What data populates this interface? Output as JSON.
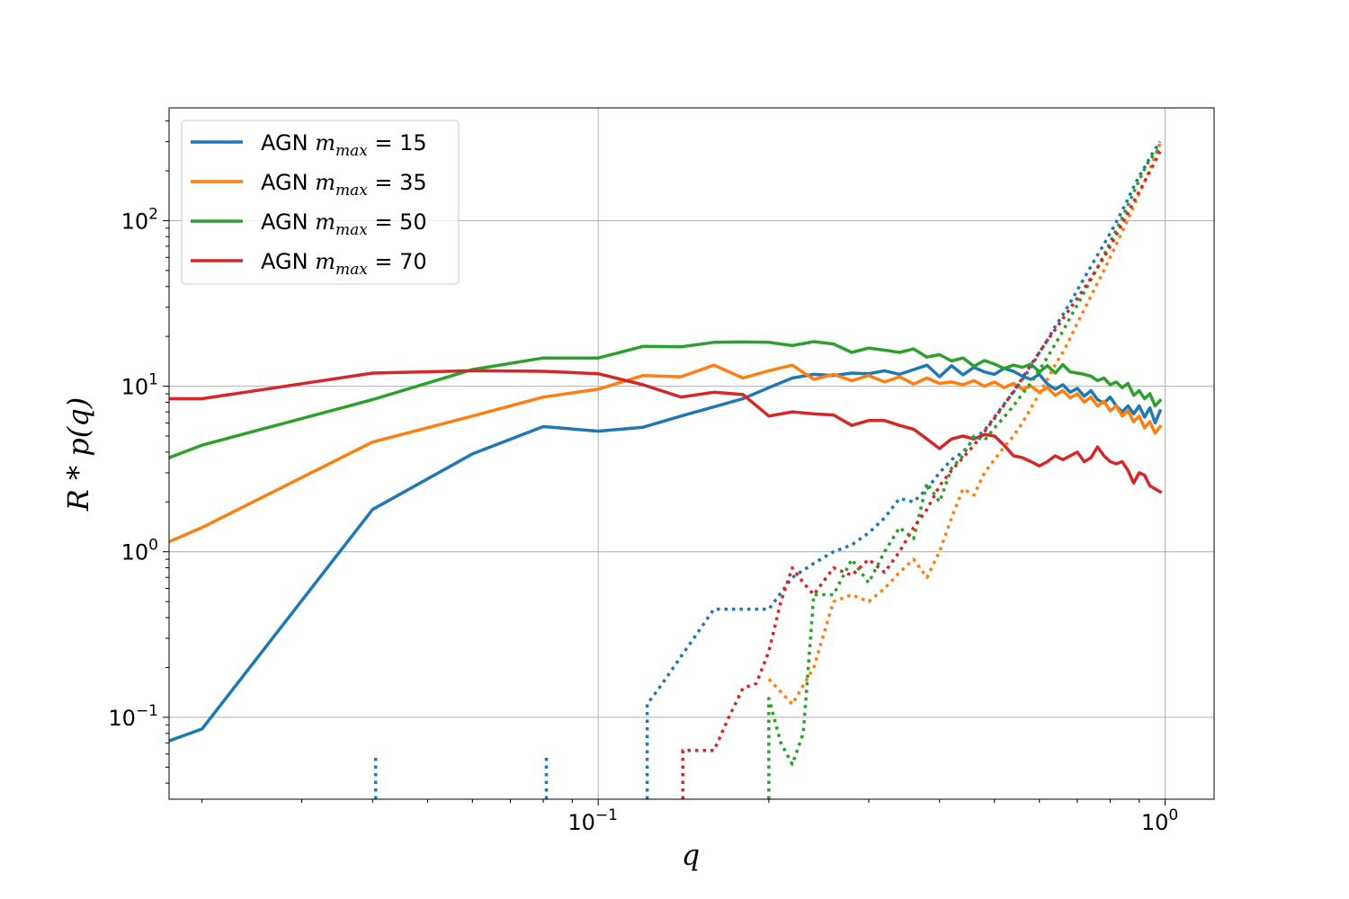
{
  "chart_data": {
    "type": "line",
    "xlabel": "q",
    "ylabel": "R * p(q)",
    "xscale": "log",
    "yscale": "log",
    "xlim": [
      0.0175,
      1.22
    ],
    "ylim": [
      0.032,
      480
    ],
    "grid": true,
    "legend_position": "top-left",
    "x_ticks": [
      {
        "value": 0.1,
        "label": "10",
        "exp": "−1"
      },
      {
        "value": 1,
        "label": "10",
        "exp": "0"
      }
    ],
    "y_ticks": [
      {
        "value": 0.1,
        "label": "10",
        "exp": "−1"
      },
      {
        "value": 1,
        "label": "10",
        "exp": "0"
      },
      {
        "value": 10,
        "label": "10",
        "exp": "1"
      },
      {
        "value": 100,
        "label": "10",
        "exp": "2"
      }
    ],
    "series": [
      {
        "name": "AGN m_max = 15",
        "legend_prefix": "AGN ",
        "legend_var": "m",
        "legend_sub": "max",
        "legend_val": " = 15",
        "color": "#1f77b4",
        "style": "solid",
        "x": [
          0.0175,
          0.02,
          0.04,
          0.06,
          0.08,
          0.1,
          0.12,
          0.14,
          0.16,
          0.18,
          0.2,
          0.22,
          0.24,
          0.26,
          0.28,
          0.3,
          0.32,
          0.34,
          0.36,
          0.38,
          0.4,
          0.42,
          0.44,
          0.46,
          0.48,
          0.5,
          0.52,
          0.54,
          0.56,
          0.58,
          0.6,
          0.62,
          0.64,
          0.66,
          0.68,
          0.7,
          0.72,
          0.74,
          0.76,
          0.78,
          0.8,
          0.82,
          0.84,
          0.86,
          0.88,
          0.9,
          0.92,
          0.94,
          0.96,
          0.98
        ],
        "y": [
          0.072,
          0.085,
          1.8,
          3.9,
          5.7,
          5.35,
          5.65,
          6.6,
          7.5,
          8.4,
          9.8,
          11.2,
          11.8,
          11.6,
          12.0,
          11.9,
          12.4,
          11.8,
          12.6,
          13.4,
          11.4,
          13.3,
          11.7,
          13.0,
          12.2,
          11.8,
          12.8,
          12.3,
          11.5,
          11.0,
          11.8,
          10.3,
          9.6,
          10.2,
          9.2,
          9.7,
          8.7,
          9.4,
          8.3,
          7.9,
          8.6,
          7.6,
          7.0,
          7.6,
          6.8,
          7.6,
          6.5,
          7.4,
          6.0,
          7.1
        ]
      },
      {
        "name": "AGN m_max = 35",
        "legend_prefix": "AGN ",
        "legend_var": "m",
        "legend_sub": "max",
        "legend_val": " = 35",
        "color": "#ff7f0e",
        "style": "solid",
        "x": [
          0.0175,
          0.02,
          0.04,
          0.06,
          0.08,
          0.1,
          0.12,
          0.14,
          0.16,
          0.18,
          0.2,
          0.22,
          0.24,
          0.26,
          0.28,
          0.3,
          0.32,
          0.34,
          0.36,
          0.38,
          0.4,
          0.42,
          0.44,
          0.46,
          0.48,
          0.5,
          0.52,
          0.54,
          0.56,
          0.58,
          0.6,
          0.62,
          0.64,
          0.66,
          0.68,
          0.7,
          0.72,
          0.74,
          0.76,
          0.78,
          0.8,
          0.82,
          0.84,
          0.86,
          0.88,
          0.9,
          0.92,
          0.94,
          0.96,
          0.98
        ],
        "y": [
          1.15,
          1.4,
          4.6,
          6.6,
          8.6,
          9.6,
          11.6,
          11.4,
          13.4,
          11.2,
          12.4,
          13.4,
          11.0,
          11.8,
          10.8,
          11.6,
          10.6,
          11.4,
          10.3,
          11.2,
          10.4,
          10.6,
          10.2,
          10.8,
          10.0,
          10.6,
          9.8,
          10.4,
          9.6,
          10.0,
          9.2,
          9.8,
          8.8,
          9.4,
          8.5,
          9.0,
          8.0,
          8.6,
          7.6,
          8.1,
          7.1,
          7.6,
          6.6,
          7.1,
          6.1,
          6.6,
          5.6,
          6.1,
          5.2,
          5.7
        ]
      },
      {
        "name": "AGN m_max = 50",
        "legend_prefix": "AGN ",
        "legend_var": "m",
        "legend_sub": "max",
        "legend_val": " = 50",
        "color": "#2ca02c",
        "style": "solid",
        "x": [
          0.0175,
          0.02,
          0.04,
          0.06,
          0.08,
          0.1,
          0.12,
          0.14,
          0.16,
          0.18,
          0.2,
          0.22,
          0.24,
          0.26,
          0.28,
          0.3,
          0.32,
          0.34,
          0.36,
          0.38,
          0.4,
          0.42,
          0.44,
          0.46,
          0.48,
          0.5,
          0.52,
          0.54,
          0.56,
          0.58,
          0.6,
          0.62,
          0.64,
          0.66,
          0.68,
          0.7,
          0.72,
          0.74,
          0.76,
          0.78,
          0.8,
          0.82,
          0.84,
          0.86,
          0.88,
          0.9,
          0.92,
          0.94,
          0.96,
          0.98
        ],
        "y": [
          3.7,
          4.4,
          8.3,
          12.6,
          14.8,
          14.8,
          17.4,
          17.3,
          18.4,
          18.5,
          18.4,
          17.6,
          18.6,
          18.0,
          16.0,
          17.0,
          16.5,
          16.0,
          16.8,
          15.0,
          15.5,
          14.2,
          14.8,
          13.2,
          14.3,
          13.6,
          12.8,
          13.4,
          13.0,
          13.6,
          12.2,
          13.3,
          12.0,
          13.5,
          12.2,
          12.0,
          11.8,
          11.5,
          10.8,
          11.2,
          10.2,
          10.6,
          9.8,
          10.4,
          8.8,
          9.4,
          8.4,
          9.0,
          7.6,
          8.2
        ]
      },
      {
        "name": "AGN m_max = 70",
        "legend_prefix": "AGN ",
        "legend_var": "m",
        "legend_sub": "max",
        "legend_val": " = 70",
        "color": "#d62728",
        "style": "solid",
        "x": [
          0.0175,
          0.02,
          0.04,
          0.06,
          0.08,
          0.1,
          0.12,
          0.14,
          0.16,
          0.18,
          0.2,
          0.22,
          0.24,
          0.26,
          0.28,
          0.3,
          0.32,
          0.34,
          0.36,
          0.38,
          0.4,
          0.42,
          0.44,
          0.46,
          0.48,
          0.5,
          0.52,
          0.54,
          0.56,
          0.58,
          0.6,
          0.62,
          0.64,
          0.66,
          0.68,
          0.7,
          0.72,
          0.74,
          0.76,
          0.78,
          0.8,
          0.82,
          0.84,
          0.86,
          0.88,
          0.9,
          0.92,
          0.94,
          0.96,
          0.98
        ],
        "y": [
          8.4,
          8.4,
          12.0,
          12.4,
          12.3,
          11.9,
          10.2,
          8.6,
          9.2,
          8.9,
          6.6,
          7.0,
          6.8,
          6.7,
          5.8,
          6.2,
          6.2,
          5.8,
          5.5,
          4.8,
          4.2,
          4.8,
          5.0,
          4.8,
          5.1,
          5.0,
          4.4,
          3.8,
          3.7,
          3.5,
          3.3,
          3.5,
          3.8,
          3.6,
          3.8,
          4.0,
          3.5,
          3.7,
          4.3,
          3.8,
          3.5,
          3.4,
          3.5,
          3.1,
          2.6,
          3.0,
          2.9,
          2.5,
          2.4,
          2.3
        ]
      },
      {
        "name": "",
        "color": "#1f77b4",
        "style": "dotted",
        "segments": [
          {
            "x": [
              0.0405,
              0.0405
            ],
            "y": [
              0.032,
              0.058
            ]
          },
          {
            "x": [
              0.081,
              0.081
            ],
            "y": [
              0.032,
              0.058
            ]
          },
          {
            "x": [
              0.122,
              0.122,
              0.128,
              0.16,
              0.2,
              0.22,
              0.24,
              0.26,
              0.28,
              0.3,
              0.32,
              0.34,
              0.36,
              0.38,
              0.4,
              0.42,
              0.44,
              0.46,
              0.48,
              0.5,
              0.52,
              0.54,
              0.56,
              0.58,
              0.6,
              0.62,
              0.64,
              0.66,
              0.68,
              0.7,
              0.72,
              0.74,
              0.76,
              0.78,
              0.8,
              0.82,
              0.84,
              0.86,
              0.88,
              0.9,
              0.92,
              0.94,
              0.96,
              0.98
            ],
            "y": [
              0.032,
              0.12,
              0.15,
              0.45,
              0.45,
              0.7,
              0.85,
              1.0,
              1.1,
              1.3,
              1.6,
              2.1,
              2.0,
              2.4,
              3.0,
              3.6,
              4.0,
              4.8,
              5.4,
              6.5,
              7.8,
              9.2,
              11.0,
              13.0,
              16.0,
              19.0,
              23.0,
              27.0,
              32.0,
              38.0,
              45.0,
              53.0,
              62.0,
              72.0,
              84.0,
              98.0,
              115.0,
              135.0,
              160.0,
              185.0,
              210.0,
              240.0,
              270.0,
              300.0
            ]
          }
        ]
      },
      {
        "name": "",
        "color": "#ff7f0e",
        "style": "dotted",
        "segments": [
          {
            "x": [
              0.2,
              0.22,
              0.24,
              0.26,
              0.28,
              0.3,
              0.32,
              0.34,
              0.36,
              0.38,
              0.4,
              0.42,
              0.44,
              0.46,
              0.48,
              0.5,
              0.52,
              0.54,
              0.56,
              0.58,
              0.6,
              0.62,
              0.64,
              0.66,
              0.68,
              0.7,
              0.72,
              0.74,
              0.76,
              0.78,
              0.8,
              0.82,
              0.84,
              0.86,
              0.88,
              0.9,
              0.92,
              0.94,
              0.96,
              0.98
            ],
            "y": [
              0.17,
              0.12,
              0.2,
              0.5,
              0.55,
              0.5,
              0.6,
              0.75,
              0.9,
              0.7,
              1.0,
              1.6,
              2.4,
              2.2,
              3.0,
              3.6,
              4.3,
              5.0,
              6.0,
              7.4,
              9.0,
              11.0,
              13.5,
              16.0,
              19.5,
              24.0,
              29.0,
              35.0,
              42.0,
              50.0,
              60.0,
              72.0,
              86.0,
              102.0,
              122.0,
              145.0,
              172.0,
              205.0,
              245.0,
              295.0
            ]
          }
        ]
      },
      {
        "name": "",
        "color": "#2ca02c",
        "style": "dotted",
        "segments": [
          {
            "x": [
              0.2,
              0.2,
              0.21,
              0.22,
              0.23,
              0.24,
              0.26,
              0.28,
              0.3,
              0.32,
              0.34,
              0.36,
              0.38,
              0.4,
              0.42,
              0.44,
              0.46,
              0.48,
              0.5,
              0.52,
              0.54,
              0.56,
              0.58,
              0.6,
              0.62,
              0.64,
              0.66,
              0.68,
              0.7,
              0.72,
              0.74,
              0.76,
              0.78,
              0.8,
              0.82,
              0.84,
              0.86,
              0.88,
              0.9,
              0.92,
              0.94,
              0.96,
              0.98
            ],
            "y": [
              0.032,
              0.13,
              0.07,
              0.052,
              0.08,
              0.55,
              0.55,
              0.9,
              0.65,
              1.0,
              1.4,
              1.2,
              2.6,
              2.0,
              3.2,
              3.8,
              5.0,
              4.7,
              5.6,
              6.5,
              7.6,
              9.0,
              10.5,
              12.5,
              15.0,
              18.0,
              21.5,
              26.0,
              31.0,
              37.0,
              44.0,
              52.0,
              62.0,
              74.0,
              88.0,
              104.0,
              124.0,
              148.0,
              175.0,
              205.0,
              235.0,
              255.0,
              275.0
            ]
          }
        ]
      },
      {
        "name": "",
        "color": "#d62728",
        "style": "dotted",
        "segments": [
          {
            "x": [
              0.141,
              0.141,
              0.15,
              0.16,
              0.17,
              0.18,
              0.19,
              0.2,
              0.21,
              0.22,
              0.23,
              0.24,
              0.26,
              0.28,
              0.3,
              0.32,
              0.34,
              0.36,
              0.38,
              0.4,
              0.42,
              0.44,
              0.46,
              0.48,
              0.5,
              0.52,
              0.54,
              0.56,
              0.58,
              0.6,
              0.62,
              0.64,
              0.66,
              0.68,
              0.7,
              0.72,
              0.74,
              0.76,
              0.78,
              0.8,
              0.82,
              0.84,
              0.86,
              0.88,
              0.9,
              0.92,
              0.94,
              0.96,
              0.98
            ],
            "y": [
              0.032,
              0.063,
              0.063,
              0.063,
              0.1,
              0.15,
              0.16,
              0.25,
              0.5,
              0.8,
              0.65,
              0.55,
              0.8,
              0.72,
              0.9,
              0.75,
              1.0,
              1.4,
              1.8,
              2.5,
              3.1,
              3.7,
              4.4,
              5.3,
              6.4,
              7.7,
              9.3,
              11.2,
              13.5,
              16.0,
              19.0,
              22.0,
              25.5,
              29.5,
              34.0,
              39.0,
              45.0,
              52.0,
              60.0,
              70.0,
              82.0,
              96.0,
              112.0,
              130.0,
              150.0,
              172.0,
              198.0,
              228.0,
              262.0
            ]
          }
        ]
      }
    ]
  }
}
